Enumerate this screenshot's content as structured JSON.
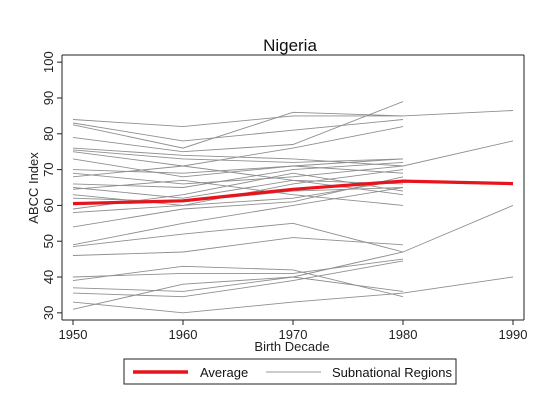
{
  "chart_data": {
    "type": "line",
    "title": "Nigeria",
    "xlabel": "Birth Decade",
    "ylabel": "ABCC Index",
    "x_ticks": [
      1950,
      1960,
      1970,
      1980,
      1990
    ],
    "y_ticks": [
      30,
      40,
      50,
      60,
      70,
      80,
      90,
      100
    ],
    "xlim": [
      1949,
      1991
    ],
    "ylim": [
      28,
      102
    ],
    "grid": false,
    "legend_position": "bottom",
    "legend": [
      {
        "label": "Average",
        "color": "#e8141c",
        "style": "thick"
      },
      {
        "label": "Subnational Regions",
        "color": "#9a9a9a",
        "style": "thin"
      }
    ],
    "average": {
      "name": "Average",
      "x": [
        1950,
        1960,
        1970,
        1980,
        1990
      ],
      "values": [
        60.5,
        61.3,
        64.5,
        66.8,
        66.1
      ]
    },
    "regions": {
      "name": "Subnational Regions",
      "series": [
        {
          "x": [
            1950,
            1960,
            1970,
            1980
          ],
          "values": [
            84,
            82,
            85,
            85
          ]
        },
        {
          "x": [
            1950,
            1960,
            1970,
            1980
          ],
          "values": [
            83,
            78,
            81,
            84
          ]
        },
        {
          "x": [
            1950,
            1960,
            1970,
            1980,
            1990
          ],
          "values": [
            82.5,
            76,
            86,
            85,
            86.5
          ]
        },
        {
          "x": [
            1950,
            1960,
            1970,
            1980
          ],
          "values": [
            79,
            75,
            77,
            89
          ]
        },
        {
          "x": [
            1950,
            1960,
            1970,
            1980,
            1990
          ],
          "values": [
            76,
            74,
            73,
            71,
            78
          ]
        },
        {
          "x": [
            1950,
            1960,
            1970,
            1980
          ],
          "values": [
            75.5,
            73,
            72,
            73
          ]
        },
        {
          "x": [
            1950,
            1960,
            1970,
            1980
          ],
          "values": [
            75,
            71,
            76,
            82
          ]
        },
        {
          "x": [
            1950,
            1960,
            1970,
            1980
          ],
          "values": [
            73,
            68,
            71,
            69
          ]
        },
        {
          "x": [
            1950,
            1960,
            1970,
            1980
          ],
          "values": [
            70,
            69,
            71,
            73
          ]
        },
        {
          "x": [
            1950,
            1960,
            1970,
            1980
          ],
          "values": [
            69,
            66,
            68,
            71
          ]
        },
        {
          "x": [
            1950,
            1960,
            1970,
            1980
          ],
          "values": [
            68,
            71,
            67,
            66
          ]
        },
        {
          "x": [
            1950,
            1960,
            1970,
            1980
          ],
          "values": [
            66,
            65,
            70,
            72
          ]
        },
        {
          "x": [
            1950,
            1960,
            1970,
            1980
          ],
          "values": [
            65,
            62,
            67,
            63
          ]
        },
        {
          "x": [
            1950,
            1960,
            1970,
            1980
          ],
          "values": [
            64.5,
            67,
            63,
            60
          ]
        },
        {
          "x": [
            1950,
            1960,
            1970,
            1980
          ],
          "values": [
            63,
            60,
            66,
            70
          ]
        },
        {
          "x": [
            1950,
            1960,
            1970,
            1980
          ],
          "values": [
            62,
            61,
            64,
            65
          ]
        },
        {
          "x": [
            1950,
            1960,
            1970,
            1980
          ],
          "values": [
            59,
            63,
            69,
            64
          ]
        },
        {
          "x": [
            1950,
            1960,
            1970,
            1980
          ],
          "values": [
            58,
            60,
            62,
            67
          ]
        },
        {
          "x": [
            1950,
            1960,
            1970,
            1980
          ],
          "values": [
            54,
            59,
            61,
            68
          ]
        },
        {
          "x": [
            1950,
            1960,
            1970,
            1980
          ],
          "values": [
            49,
            55,
            60,
            65
          ]
        },
        {
          "x": [
            1950,
            1960,
            1970,
            1980
          ],
          "values": [
            48.5,
            52,
            55,
            47
          ]
        },
        {
          "x": [
            1950,
            1960,
            1970,
            1980
          ],
          "values": [
            46,
            47,
            51,
            49
          ]
        },
        {
          "x": [
            1950,
            1960,
            1970,
            1980
          ],
          "values": [
            40,
            41,
            41,
            45
          ]
        },
        {
          "x": [
            1950,
            1960,
            1970,
            1980
          ],
          "values": [
            39,
            43,
            42,
            34.5
          ]
        },
        {
          "x": [
            1950,
            1960,
            1970,
            1980,
            1990
          ],
          "values": [
            37,
            36,
            40,
            47,
            60
          ]
        },
        {
          "x": [
            1950,
            1960,
            1970,
            1980
          ],
          "values": [
            35.5,
            34.5,
            39,
            44.5
          ]
        },
        {
          "x": [
            1950,
            1960,
            1970,
            1980,
            1990
          ],
          "values": [
            33,
            30,
            33,
            35.5,
            40
          ]
        },
        {
          "x": [
            1950,
            1960,
            1970,
            1980
          ],
          "values": [
            31,
            38,
            40,
            36
          ]
        }
      ]
    }
  }
}
